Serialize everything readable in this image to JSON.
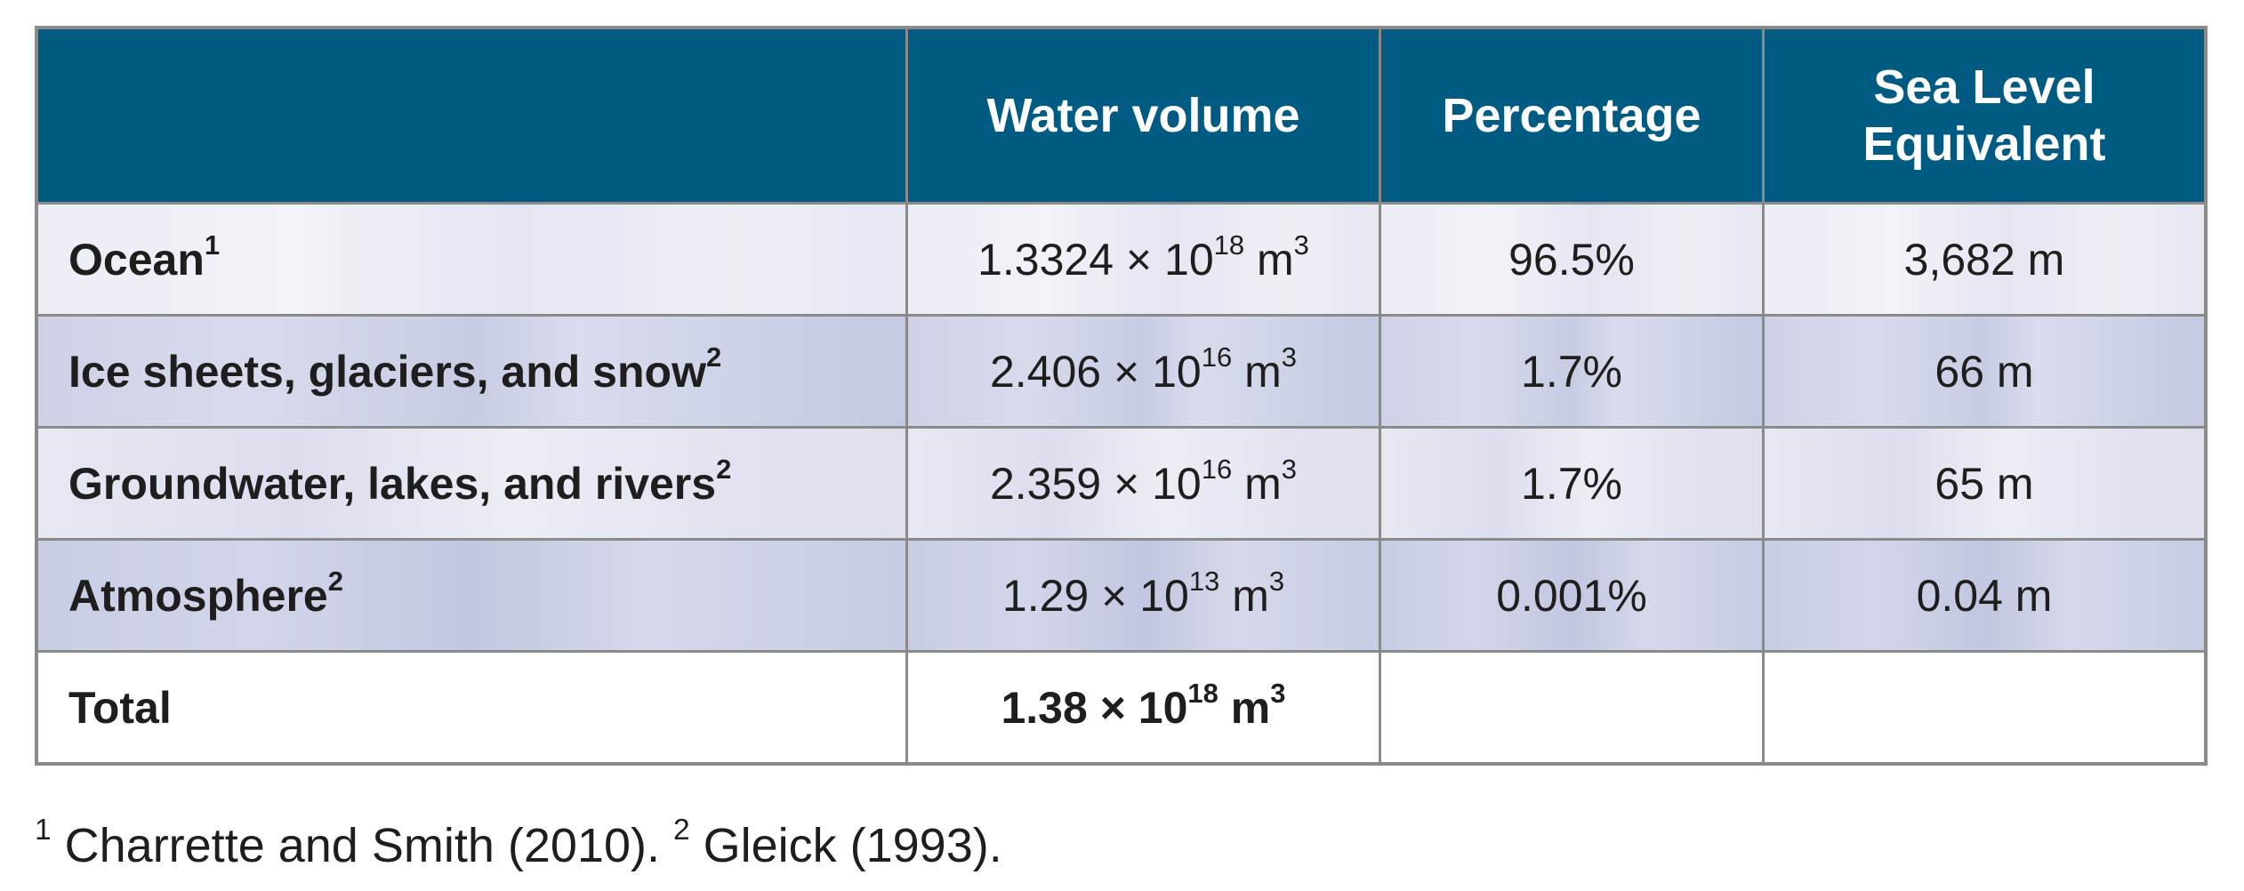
{
  "header": {
    "col0": "",
    "col1": "Water volume",
    "col2": "Percentage",
    "col3_line1": "Sea Level",
    "col3_line2": "Equivalent"
  },
  "rows": [
    {
      "label": "Ocean",
      "note": "1",
      "volume_mantissa": "1.3324 × 10",
      "volume_exp": "18",
      "volume_unit": " m",
      "unit_exp": "3",
      "percentage": "96.5%",
      "sea_level": "3,682 m"
    },
    {
      "label": "Ice sheets, glaciers, and snow",
      "note": "2",
      "volume_mantissa": "2.406 × 10",
      "volume_exp": "16",
      "volume_unit": " m",
      "unit_exp": "3",
      "percentage": "1.7%",
      "sea_level": "66 m"
    },
    {
      "label": "Groundwater, lakes, and rivers",
      "note": "2",
      "volume_mantissa": "2.359 × 10",
      "volume_exp": "16",
      "volume_unit": " m",
      "unit_exp": "3",
      "percentage": "1.7%",
      "sea_level": "65 m"
    },
    {
      "label": "Atmosphere",
      "note": "2",
      "volume_mantissa": "1.29 × 10",
      "volume_exp": "13",
      "volume_unit": " m",
      "unit_exp": "3",
      "percentage": "0.001%",
      "sea_level": "0.04 m"
    }
  ],
  "total": {
    "label": "Total",
    "volume_mantissa": "1.38 × 10",
    "volume_exp": "18",
    "volume_unit": " m",
    "unit_exp": "3",
    "percentage": "",
    "sea_level": ""
  },
  "footnote": {
    "n1": "1",
    "t1": " Charrette and Smith (2010). ",
    "n2": "2",
    "t2": " Gleick (1993)."
  },
  "colors": {
    "header_bg": "#005b82",
    "border": "#8a8a8a"
  }
}
